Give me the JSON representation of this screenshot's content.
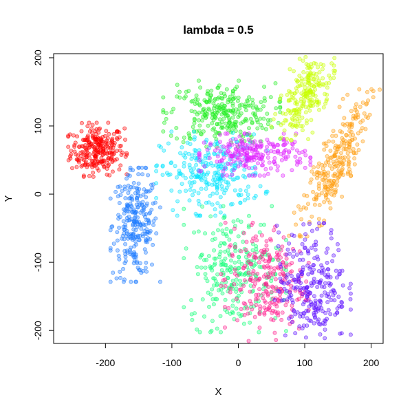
{
  "chart_data": {
    "type": "scatter",
    "title": "lambda = 0.5",
    "xlabel": "X",
    "ylabel": "Y",
    "xlim": [
      -278,
      218
    ],
    "ylim": [
      -219,
      206
    ],
    "xticks": [
      -200,
      -100,
      0,
      100,
      200
    ],
    "yticks": [
      -200,
      -100,
      0,
      100,
      200
    ],
    "xtick_labels": [
      "-200",
      "-100",
      "0",
      "100",
      "200"
    ],
    "ytick_labels": [
      "-200",
      "-100",
      "0",
      "100",
      "200"
    ],
    "grid": false,
    "legend": "none",
    "marker": "open circle, semi-transparent fill",
    "clusters": [
      {
        "color": "#ff0000",
        "center": [
          -212,
          65
        ],
        "spread": [
          20,
          18
        ],
        "count": 260
      },
      {
        "color": "#1e7bff",
        "center": [
          -155,
          -45
        ],
        "spread": [
          17,
          38
        ],
        "count": 260
      },
      {
        "color": "#22ee22",
        "center": [
          -25,
          118
        ],
        "spread": [
          40,
          22
        ],
        "count": 280
      },
      {
        "color": "#00e5ff",
        "center": [
          -40,
          30
        ],
        "spread": [
          38,
          28
        ],
        "count": 260
      },
      {
        "color": "#e020ff",
        "center": [
          25,
          58
        ],
        "spread": [
          38,
          14
        ],
        "count": 230
      },
      {
        "color": "#c8ff00",
        "center": [
          100,
          145
        ],
        "spread": [
          22,
          30
        ],
        "count": 220
      },
      {
        "color": "#ff9f10",
        "center": [
          148,
          48
        ],
        "spread": [
          28,
          50
        ],
        "count": 260
      },
      {
        "color": "#11ff77",
        "center": [
          -5,
          -110
        ],
        "spread": [
          35,
          42
        ],
        "count": 260
      },
      {
        "color": "#ff1a8c",
        "center": [
          40,
          -130
        ],
        "spread": [
          30,
          40
        ],
        "count": 250
      },
      {
        "color": "#5e10ff",
        "center": [
          112,
          -135
        ],
        "spread": [
          26,
          42
        ],
        "count": 260
      }
    ]
  }
}
